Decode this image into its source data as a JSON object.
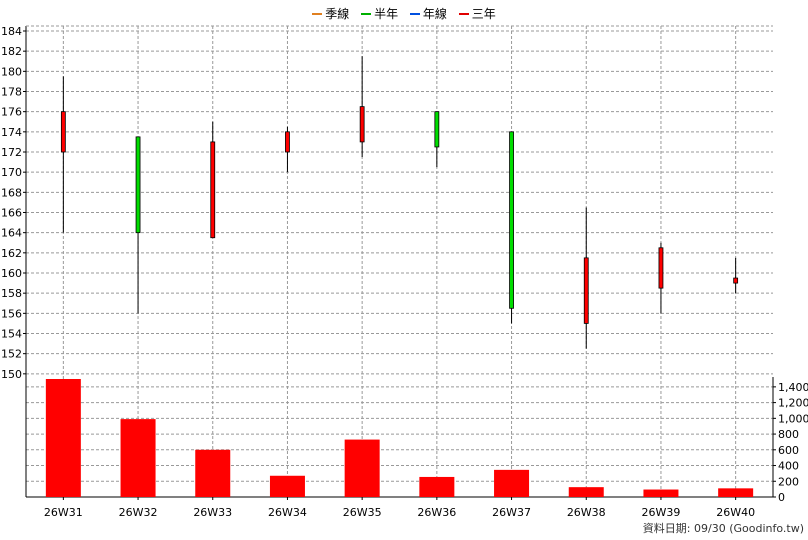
{
  "legend": [
    {
      "label": "季線",
      "color": "#e08020"
    },
    {
      "label": "半年",
      "color": "#00b000"
    },
    {
      "label": "年線",
      "color": "#0050e0"
    },
    {
      "label": "三年",
      "color": "#e00000"
    }
  ],
  "footer": "資料日期: 09/30  (Goodinfo.tw)",
  "chart_data": [
    {
      "type": "candlestick",
      "title": "",
      "categories": [
        "26W31",
        "26W32",
        "26W33",
        "26W34",
        "26W35",
        "26W36",
        "26W37",
        "26W38",
        "26W39",
        "26W40"
      ],
      "open": [
        172.0,
        173.5,
        163.5,
        172.0,
        173.0,
        176.0,
        174.0,
        155.0,
        158.5,
        159.0
      ],
      "high": [
        179.5,
        173.5,
        175.0,
        174.5,
        181.5,
        176.0,
        174.0,
        166.5,
        163.0,
        161.5
      ],
      "low": [
        164.0,
        156.0,
        163.5,
        170.0,
        171.5,
        170.5,
        155.0,
        152.5,
        156.0,
        158.0
      ],
      "close": [
        176.0,
        164.0,
        173.0,
        174.0,
        176.5,
        172.5,
        156.5,
        161.5,
        162.5,
        159.5
      ],
      "up_color": "#ff0000",
      "down_color": "#00dd00",
      "ylim": [
        148,
        184
      ],
      "yticks": [
        150,
        152,
        154,
        156,
        158,
        160,
        162,
        164,
        166,
        168,
        170,
        172,
        174,
        176,
        178,
        180,
        182,
        184
      ],
      "grid": true
    },
    {
      "type": "bar",
      "title": "",
      "categories": [
        "26W31",
        "26W32",
        "26W33",
        "26W34",
        "26W35",
        "26W36",
        "26W37",
        "26W38",
        "26W39",
        "26W40"
      ],
      "values": [
        1500,
        990,
        600,
        270,
        730,
        255,
        345,
        125,
        95,
        110
      ],
      "color": "#ff0000",
      "ylim": [
        0,
        1500
      ],
      "yticks": [
        0,
        200,
        400,
        600,
        800,
        1000,
        1200,
        1400
      ],
      "ytick_labels": [
        "0",
        "200",
        "400",
        "600",
        "800",
        "1,000",
        "1,200",
        "1,400"
      ],
      "grid": true
    }
  ]
}
